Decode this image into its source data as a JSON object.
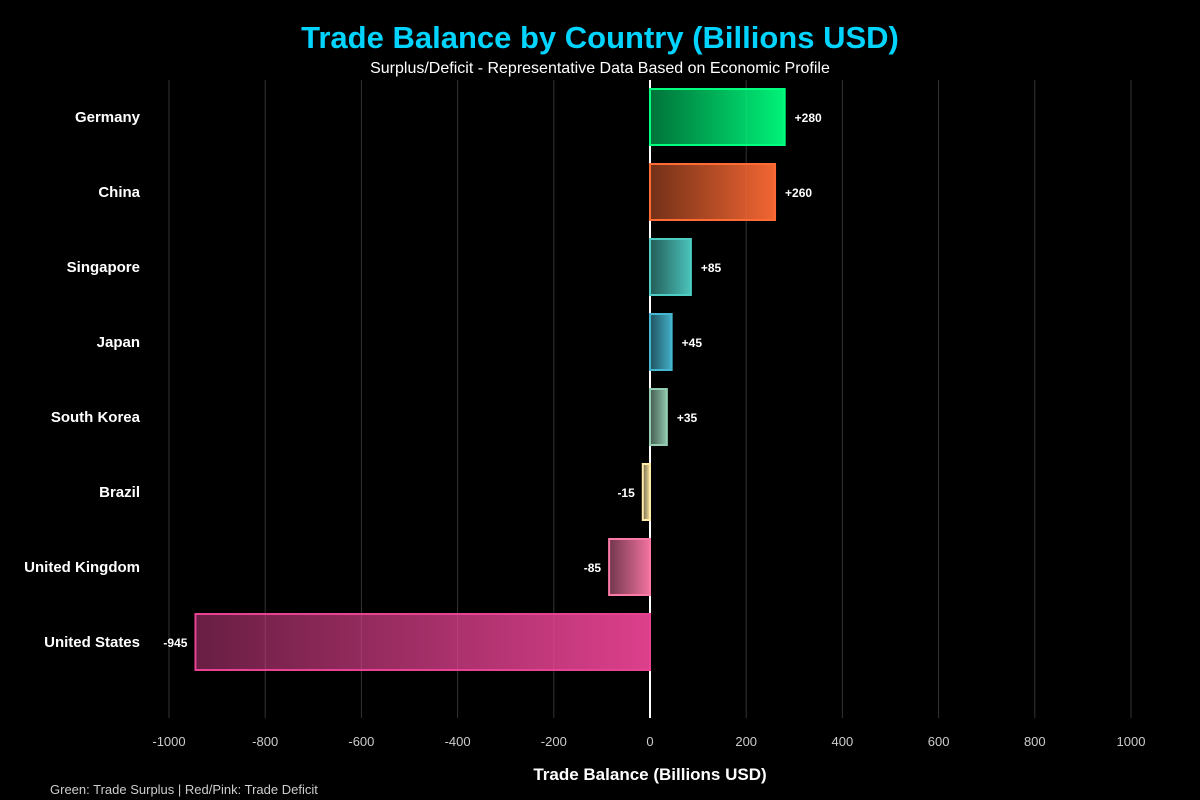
{
  "chart_data": {
    "type": "bar",
    "orientation": "horizontal",
    "title": "Trade Balance by Country (Billions USD)",
    "subtitle": "Surplus/Deficit - Representative Data Based on Economic Profile",
    "xlabel": "Trade Balance (Billions USD)",
    "ylabel": "",
    "xlim": [
      -1000,
      1000
    ],
    "xticks": [
      -1000,
      -800,
      -600,
      -400,
      -200,
      0,
      200,
      400,
      600,
      800,
      1000
    ],
    "grid": true,
    "categories": [
      "Germany",
      "China",
      "Singapore",
      "Japan",
      "South Korea",
      "Brazil",
      "United Kingdom",
      "United States"
    ],
    "values": [
      280,
      260,
      85,
      45,
      35,
      -15,
      -85,
      -945
    ],
    "data_labels": [
      "+280",
      "+260",
      "+85",
      "+45",
      "+35",
      "-15",
      "-85",
      "-945"
    ],
    "colors": [
      "#00ff7f",
      "#ff6b35",
      "#4ecdc4",
      "#45b7d1",
      "#96ceb4",
      "#ffeaa7",
      "#fd79a8",
      "#e84393"
    ],
    "footnote": "Green: Trade Surplus | Red/Pink: Trade Deficit"
  }
}
